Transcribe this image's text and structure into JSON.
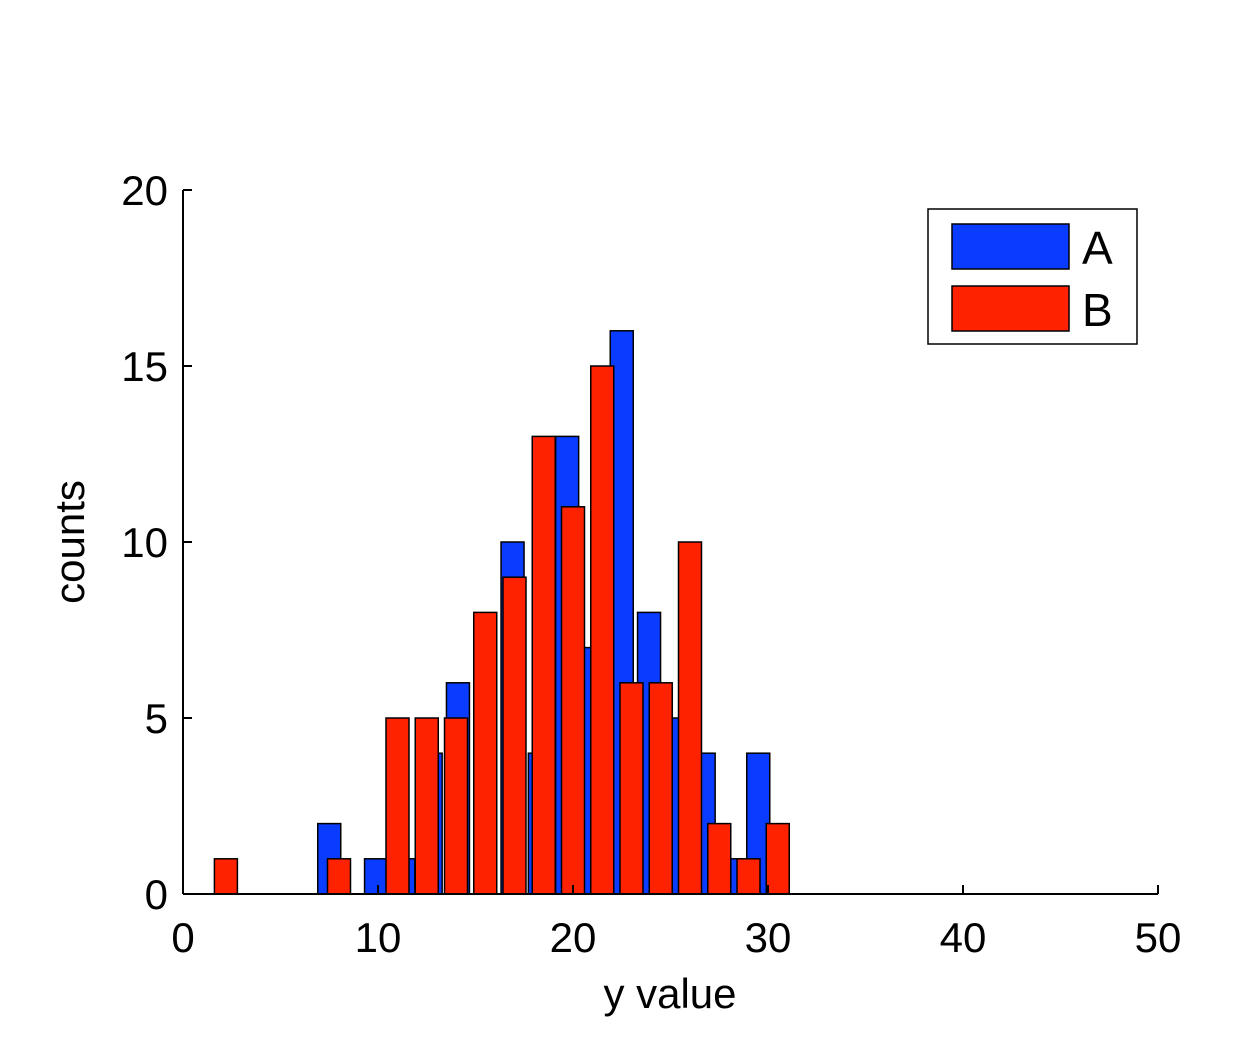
{
  "chart_data": {
    "type": "bar",
    "title": "",
    "xlabel": "y value",
    "ylabel": "counts",
    "xlim": [
      0,
      50
    ],
    "ylim": [
      0,
      20
    ],
    "xticks": [
      "0",
      "10",
      "20",
      "30",
      "40",
      "50"
    ],
    "yticks": [
      "0",
      "5",
      "10",
      "15",
      "20"
    ],
    "grid": false,
    "legend_position": "top-right",
    "series": [
      {
        "name": "A",
        "color": "#0a3cff",
        "x": [
          7.5,
          9.9,
          11.3,
          12.7,
          14.1,
          15.5,
          16.9,
          18.3,
          19.7,
          21.1,
          22.5,
          23.9,
          25.3,
          26.7,
          28.1,
          29.5
        ],
        "values": [
          2,
          1,
          1,
          4,
          6,
          6,
          10,
          4,
          13,
          7,
          16,
          8,
          5,
          4,
          1,
          4
        ]
      },
      {
        "name": "B",
        "color": "#ff2200",
        "x": [
          2.2,
          8.0,
          11.0,
          12.5,
          14.0,
          15.5,
          17.0,
          18.5,
          20.0,
          21.5,
          23.0,
          24.5,
          26.0,
          27.5,
          29.0,
          30.5
        ],
        "values": [
          1,
          1,
          5,
          5,
          5,
          8,
          9,
          13,
          11,
          15,
          6,
          6,
          10,
          2,
          1,
          2
        ]
      }
    ]
  }
}
